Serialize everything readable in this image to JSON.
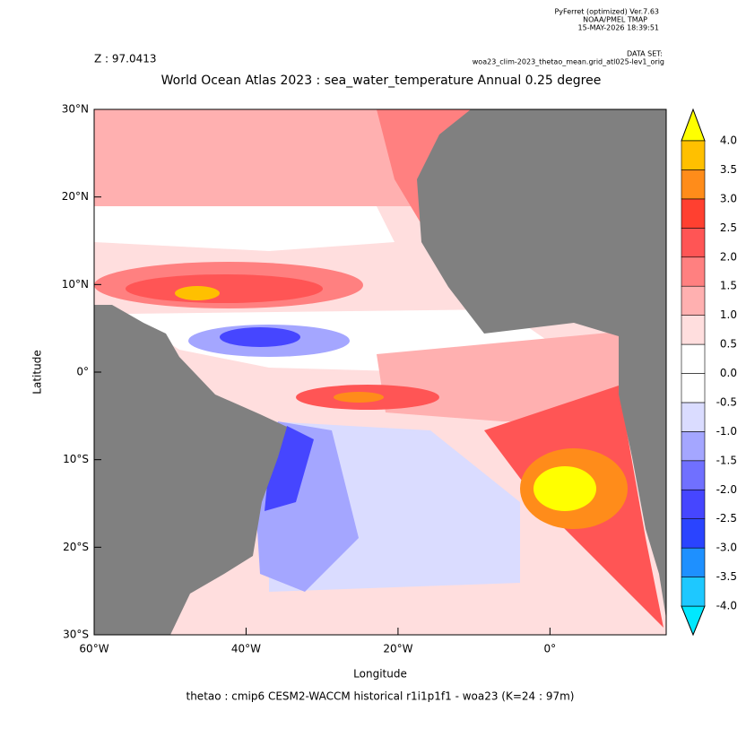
{
  "header": {
    "software": "PyFerret (optimized) Ver.7.63",
    "institution": "NOAA/PMEL TMAP",
    "timestamp": "15-MAY-2026 18:39:51"
  },
  "chart_data": {
    "type": "contour",
    "z_label": "Z : 97.0413",
    "dataset_label": "DATA SET:",
    "dataset": "woa23_clim-2023_thetao_mean.grid_atl025-lev1_orig",
    "title": "World Ocean Atlas 2023 : sea_water_temperature Annual  0.25 degree",
    "x_label": "Longitude",
    "y_label": "Latitude",
    "caption": "thetao : cmip6 CESM2-WACCM historical r1i1p1f1 - woa23  (K=24 : 97m)",
    "xlim": [
      -60,
      15.3
    ],
    "ylim": [
      -30,
      30
    ],
    "xticks": [
      {
        "value": -60,
        "label": "60°W"
      },
      {
        "value": -40,
        "label": "40°W"
      },
      {
        "value": -20,
        "label": "20°W"
      },
      {
        "value": 0,
        "label": "0°"
      }
    ],
    "yticks": [
      {
        "value": -30,
        "label": "30°S"
      },
      {
        "value": -20,
        "label": "20°S"
      },
      {
        "value": -10,
        "label": "10°S"
      },
      {
        "value": 0,
        "label": "0°"
      },
      {
        "value": 10,
        "label": "10°N"
      },
      {
        "value": 20,
        "label": "20°N"
      },
      {
        "value": 30,
        "label": "30°N"
      }
    ],
    "land_color": "#808080",
    "colorbar": {
      "levels": [
        {
          "value": -4,
          "label": "-4.0"
        },
        {
          "value": -3.5,
          "label": "-3.5"
        },
        {
          "value": -3,
          "label": "-3.0"
        },
        {
          "value": -2.5,
          "label": "-2.5"
        },
        {
          "value": -2,
          "label": "-2.0"
        },
        {
          "value": -1.5,
          "label": "-1.5"
        },
        {
          "value": -1,
          "label": "-1.0"
        },
        {
          "value": -0.5,
          "label": "-0.5"
        },
        {
          "value": 0,
          "label": "0.0"
        },
        {
          "value": 0.5,
          "label": "0.5"
        },
        {
          "value": 1,
          "label": "1.0"
        },
        {
          "value": 1.5,
          "label": "1.5"
        },
        {
          "value": 2,
          "label": "2.0"
        },
        {
          "value": 2.5,
          "label": "2.5"
        },
        {
          "value": 3,
          "label": "3.0"
        },
        {
          "value": 3.5,
          "label": "3.5"
        },
        {
          "value": 4,
          "label": "4.0"
        }
      ],
      "colors": [
        "#00e8ff",
        "#1ec8ff",
        "#1e90ff",
        "#2a44ff",
        "#4646ff",
        "#7070ff",
        "#a4a6ff",
        "#dadcff",
        "#ffffff",
        "#ffffff",
        "#ffdede",
        "#ffb0b0",
        "#ff8080",
        "#ff5555",
        "#ff4030",
        "#ff8c1a",
        "#ffc000",
        "#ffff00"
      ]
    }
  }
}
